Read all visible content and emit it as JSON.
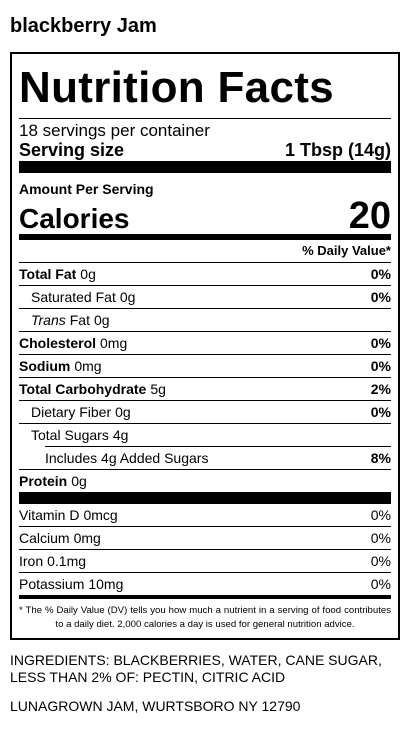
{
  "title": "blackberry Jam",
  "label": {
    "heading": "Nutrition Facts",
    "servings": "18 servings per container",
    "serving_size": {
      "label": "Serving size",
      "value": "1 Tbsp (14g)"
    },
    "amount_per_serving": "Amount Per Serving",
    "calories": {
      "label": "Calories",
      "value": "20"
    },
    "daily_value_header": "% Daily Value*",
    "nutrients": [
      {
        "name": "Total Fat",
        "amount": "0g",
        "dv": "0%"
      },
      {
        "name": "Saturated Fat",
        "amount": "0g",
        "dv": "0%"
      },
      {
        "name_italic": "Trans",
        "name": "Fat",
        "amount": "0g"
      },
      {
        "name": "Cholesterol",
        "amount": "0mg",
        "dv": "0%"
      },
      {
        "name": "Sodium",
        "amount": "0mg",
        "dv": "0%"
      },
      {
        "name": "Total Carbohydrate",
        "amount": "5g",
        "dv": "2%"
      },
      {
        "name": "Dietary Fiber",
        "amount": "0g",
        "dv": "0%"
      },
      {
        "name": "Total Sugars",
        "amount": "4g"
      },
      {
        "name": "Includes 4g Added Sugars",
        "dv": "8%"
      },
      {
        "name": "Protein",
        "amount": "0g"
      }
    ],
    "vitamins": [
      {
        "name": "Vitamin D",
        "amount": "0mcg",
        "dv": "0%"
      },
      {
        "name": "Calcium",
        "amount": "0mg",
        "dv": "0%"
      },
      {
        "name": "Iron",
        "amount": "0.1mg",
        "dv": "0%"
      },
      {
        "name": "Potassium",
        "amount": "10mg",
        "dv": "0%"
      }
    ],
    "footnote": "* The % Daily Value (DV) tells you how much a nutrient in a serving of food contributes to a daily diet. 2,000 calories a day is used for general nutrition advice."
  },
  "ingredients": "INGREDIENTS: BLACKBERRIES, WATER, CANE SUGAR, LESS THAN 2% OF: PECTIN, CITRIC ACID",
  "address": "LUNAGROWN JAM, WURTSBORO NY 12790"
}
